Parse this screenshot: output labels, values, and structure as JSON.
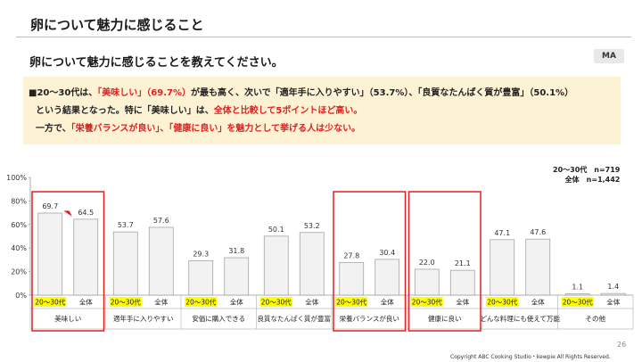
{
  "header": {
    "title": "卵について魅力に感じること"
  },
  "question": {
    "text": "卵について魅力に感じることを教えてください。",
    "badge": "MA"
  },
  "summary": {
    "line1": [
      {
        "t": "■20～30代は、",
        "red": false
      },
      {
        "t": "「美味しい」（69.7%）",
        "red": true
      },
      {
        "t": "が最も高く、次いで「適年手に入りやすい」（53.7%）、「良質なたんぱく質が豊富」（50.1%）",
        "red": false
      }
    ],
    "line2": [
      {
        "t": "という結果となった。特に「美味しい」は、",
        "red": false
      },
      {
        "t": "全体と比較して5ポイントほど高い。",
        "red": true
      }
    ],
    "line3": [
      {
        "t": "一方で、",
        "red": false
      },
      {
        "t": "「栄養バランスが良い」、「健康に良い」を魅力として挙げる人は少ない。",
        "red": true
      }
    ]
  },
  "legend": {
    "line1": "20～30代　n=719",
    "line2": "全体　n=1,442"
  },
  "chart_data": {
    "type": "bar",
    "ylim": [
      0,
      100
    ],
    "yticks": [
      "0%",
      "20%",
      "40%",
      "60%",
      "80%",
      "100%"
    ],
    "categories": [
      "美味しい",
      "適年手に入りやすい",
      "安価に購入できる",
      "良質なたんぱく質が豊富",
      "栄養バランスが良い",
      "健康に良い",
      "どんな料理にも使えて万能",
      "その他"
    ],
    "series": [
      {
        "name": "20～30代",
        "values": [
          69.7,
          53.7,
          29.3,
          50.1,
          27.8,
          22.0,
          47.1,
          1.1
        ]
      },
      {
        "name": "全体",
        "values": [
          64.5,
          57.6,
          31.8,
          53.2,
          30.4,
          21.1,
          47.6,
          1.4
        ]
      }
    ],
    "value_labels": [
      [
        "69.7",
        "64.5"
      ],
      [
        "53.7",
        "57.6"
      ],
      [
        "29.3",
        "31.8"
      ],
      [
        "50.1",
        "53.2"
      ],
      [
        "27.8",
        "30.4"
      ],
      [
        "22.0",
        "21.1"
      ],
      [
        "47.1",
        "47.6"
      ],
      [
        "1.1",
        "1.4"
      ]
    ],
    "highlighted_categories": [
      0,
      4,
      5
    ],
    "colors": {
      "bar": "#f2f2f2",
      "bar_stroke": "#999999",
      "highlight_box": "#e02020",
      "series_label_bg": "#ffff00",
      "arrow": "#e02020"
    }
  },
  "footer": {
    "page_number": "26",
    "copyright": "Copyright ABC Cooking Studio・kewpie All Rights Reserved."
  }
}
